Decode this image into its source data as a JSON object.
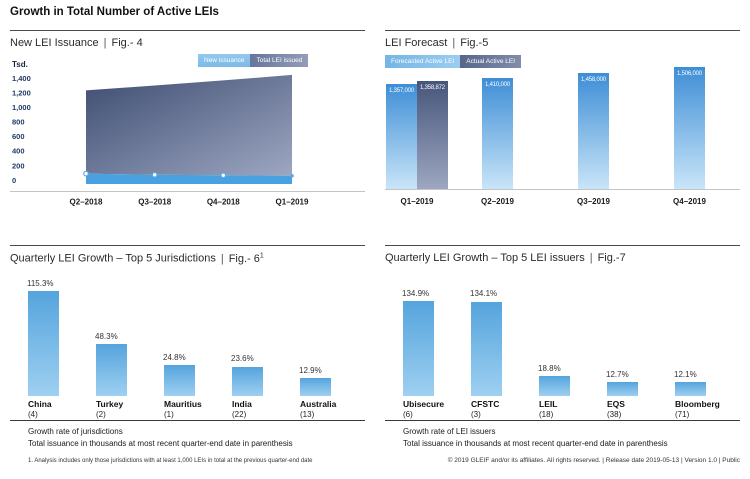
{
  "page": {
    "title": "Growth in Total Number of Active LEIs",
    "title_separator": "|",
    "footnote": "1. Analysis includes only those jurisdictions with at least 1,000 LEIs in total at the previous quarter-end date",
    "footer": "© 2019 GLEIF and/or its affiliates. All rights reserved.  |  Release date 2019-05-13  |  Version 1.0  |  Public"
  },
  "colors": {
    "light_blue": "#4AA1DF",
    "light_blue_chip": "#8AC4EA",
    "dark_slate_top": "#46557A",
    "dark_slate_bottom": "#9DA7C1",
    "bar_gradient_top": "#55A4DD",
    "bar_gradient_bottom": "#9ED0F1",
    "axis_tick_text": "#1F3A66",
    "baseline_gray": "#C4C4C4"
  },
  "chart_data": [
    {
      "id": "fig4",
      "type": "area",
      "title": "New LEI Issuance",
      "fig_label": "Fig.- 4",
      "unit_label": "Tsd.",
      "categories": [
        "Q2–2018",
        "Q3–2018",
        "Q4–2018",
        "Q1–2019"
      ],
      "series": [
        {
          "name": "New issuance",
          "values": [
            88,
            72,
            64,
            58
          ]
        },
        {
          "name": "Total LEI issued",
          "values": [
            1232,
            1300,
            1370,
            1445
          ]
        }
      ],
      "ylabel": "Tsd.",
      "ylim": [
        0,
        1400
      ],
      "yticks": [
        0,
        200,
        400,
        600,
        800,
        1000,
        1200,
        1400
      ],
      "ytick_labels": [
        "0",
        "200",
        "400",
        "600",
        "800",
        "1,000",
        "1,200",
        "1,400"
      ],
      "legend_position": "top-right",
      "grid": false
    },
    {
      "id": "fig5",
      "type": "bar",
      "title": "LEI Forecast",
      "fig_label": "Fig.-5",
      "categories": [
        "Q1–2019",
        "Q2–2019",
        "Q3–2019",
        "Q4–2019"
      ],
      "series": [
        {
          "name": "Forecasted Active LEI",
          "values": [
            1357000,
            1410000,
            1458000,
            1506000
          ],
          "value_labels": [
            "1,357,000",
            "1,410,000",
            "1,458,000",
            "1,506,000"
          ]
        },
        {
          "name": "Actual Active LEI",
          "values": [
            1358872,
            null,
            null,
            null
          ],
          "value_labels": [
            "1,358,872",
            null,
            null,
            null
          ]
        }
      ],
      "legend_position": "top-left",
      "value_labels_inside_top": true,
      "grid": false
    },
    {
      "id": "fig6",
      "type": "bar",
      "title": "Quarterly LEI Growth – Top 5 Jurisdictions",
      "fig_label": "Fig.- 6",
      "fig_superscript": "1",
      "categories": [
        "China",
        "Turkey",
        "Mauritius",
        "India",
        "Australia"
      ],
      "category_sub_labels": [
        "(4)",
        "(2)",
        "(1)",
        "(22)",
        "(13)"
      ],
      "values": [
        115.3,
        48.3,
        24.8,
        23.6,
        12.9
      ],
      "value_labels": [
        "115.3%",
        "48.3%",
        "24.8%",
        "23.6%",
        "12.9%"
      ],
      "notes": [
        "Growth rate of jurisdictions",
        "Total issuance in thousands at most recent quarter-end date in parenthesis"
      ],
      "grid": false
    },
    {
      "id": "fig7",
      "type": "bar",
      "title": "Quarterly LEI Growth – Top 5 LEI issuers",
      "fig_label": "Fig.-7",
      "categories": [
        "Ubisecure",
        "CFSTC",
        "LEIL",
        "EQS",
        "Bloomberg"
      ],
      "category_sub_labels": [
        "(6)",
        "(3)",
        "(18)",
        "(38)",
        "(71)"
      ],
      "values": [
        134.9,
        134.1,
        18.8,
        12.7,
        12.1
      ],
      "value_labels": [
        "134.9%",
        "134.1%",
        "18.8%",
        "12.7%",
        "12.1%"
      ],
      "notes": [
        "Growth rate of LEI issuers",
        "Total issuance in thousands at most recent quarter-end date in parenthesis"
      ],
      "grid": false
    }
  ]
}
